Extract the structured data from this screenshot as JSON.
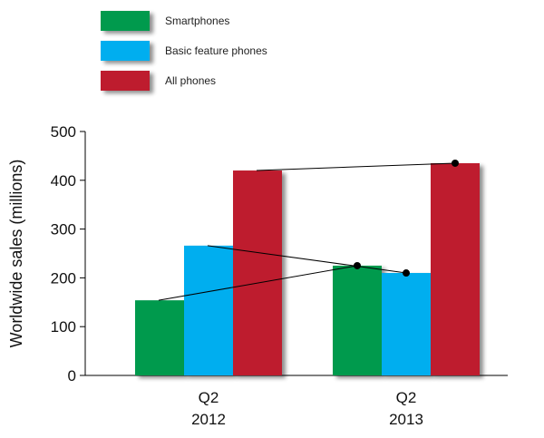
{
  "chart_data": {
    "type": "bar",
    "categories": [
      {
        "line1": "Q2",
        "line2": "2012"
      },
      {
        "line1": "Q2",
        "line2": "2013"
      }
    ],
    "series": [
      {
        "name": "Smartphones",
        "color": "#009a4e",
        "values": [
          154,
          225
        ]
      },
      {
        "name": "Basic feature phones",
        "color": "#00aeef",
        "values": [
          266,
          210
        ]
      },
      {
        "name": "All phones",
        "color": "#be1e2d",
        "values": [
          420,
          435
        ]
      }
    ],
    "ylabel": "Worldwide sales (millions)",
    "xlabel": "",
    "title": "",
    "ylim": [
      0,
      500
    ],
    "yticks": [
      0,
      100,
      200,
      300,
      400,
      500
    ],
    "grid": false,
    "legend_position": "top-left",
    "trend_lines": true
  }
}
